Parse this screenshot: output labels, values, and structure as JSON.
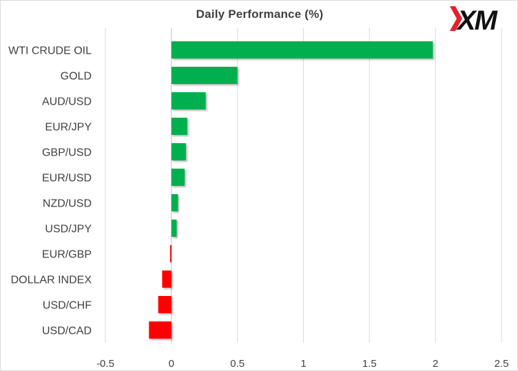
{
  "chart_data": {
    "type": "bar",
    "orientation": "horizontal",
    "title": "Daily Performance (%)",
    "categories": [
      "WTI CRUDE OIL",
      "GOLD",
      "AUD/USD",
      "EUR/JPY",
      "GBP/USD",
      "EUR/USD",
      "NZD/USD",
      "USD/JPY",
      "EUR/GBP",
      "DOLLAR INDEX",
      "USD/CHF",
      "USD/CAD"
    ],
    "values": [
      1.98,
      0.5,
      0.26,
      0.12,
      0.11,
      0.1,
      0.05,
      0.04,
      -0.01,
      -0.07,
      -0.1,
      -0.17
    ],
    "xlim": [
      -0.5,
      2.5
    ],
    "xticks": [
      "-0.5",
      "0",
      "0.5",
      "1",
      "1.5",
      "2",
      "2.5"
    ],
    "positive_color": "#00b050",
    "negative_color": "#ff0000",
    "grid": "vertical",
    "legend": "none"
  },
  "logo": {
    "text": "XM",
    "accent_color": "#e8202a"
  }
}
